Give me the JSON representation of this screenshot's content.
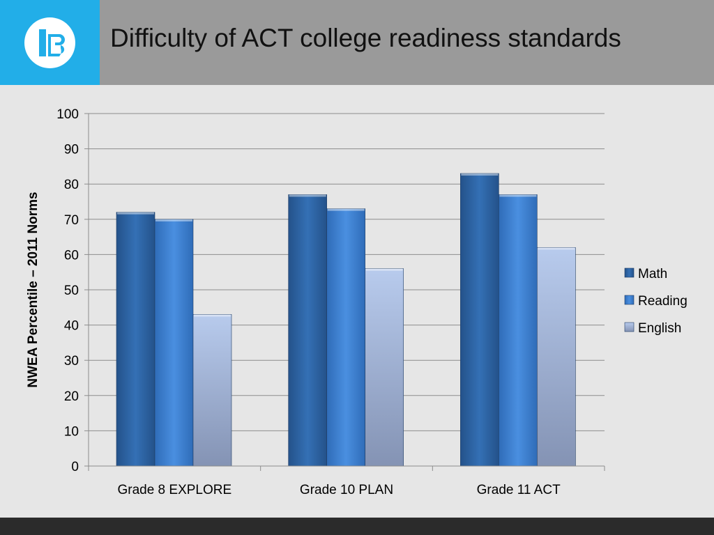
{
  "slide": {
    "title": "Difficulty of ACT college readiness standards"
  },
  "colors": {
    "header_bg": "#9a9a9a",
    "logo_bg": "#22aee8",
    "footer_bg": "#2b2b2b",
    "content_bg": "#e6e6e6"
  },
  "chart_data": {
    "type": "bar",
    "categories": [
      "Grade 8 EXPLORE",
      "Grade 10 PLAN",
      "Grade 11 ACT"
    ],
    "series": [
      {
        "name": "Math",
        "values": [
          72,
          77,
          83
        ],
        "color": "#2e64a4"
      },
      {
        "name": "Reading",
        "values": [
          70,
          73,
          77
        ],
        "color": "#3b7fd0"
      },
      {
        "name": "English",
        "values": [
          43,
          56,
          62
        ],
        "color": "#a9bde0"
      }
    ],
    "ylabel": "NWEA Percentile – 2011 Norms",
    "ylim": [
      0,
      100
    ],
    "yticks": [
      0,
      10,
      20,
      30,
      40,
      50,
      60,
      70,
      80,
      90,
      100
    ],
    "grid": true,
    "legend": "right"
  }
}
